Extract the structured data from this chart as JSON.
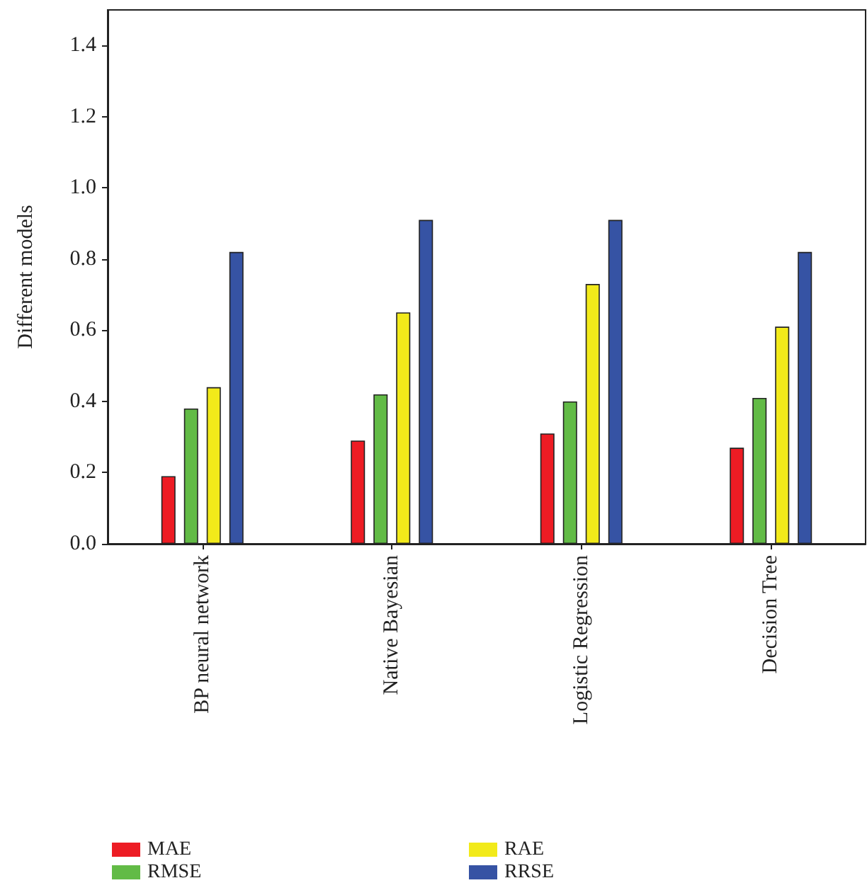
{
  "chart_data": {
    "type": "bar",
    "ylabel": "Different models",
    "categories": [
      "BP neural network",
      "Native Bayesian",
      "Logistic Regression",
      "Decision Tree"
    ],
    "series": [
      {
        "name": "MAE",
        "color": "#ed1c24",
        "values": [
          0.19,
          0.29,
          0.31,
          0.27
        ]
      },
      {
        "name": "RMSE",
        "color": "#62bb46",
        "values": [
          0.38,
          0.42,
          0.4,
          0.41
        ]
      },
      {
        "name": "RAE",
        "color": "#f2ea1a",
        "values": [
          0.44,
          0.65,
          0.73,
          0.61
        ]
      },
      {
        "name": "RRSE",
        "color": "#3653a4",
        "values": [
          0.82,
          0.91,
          0.91,
          0.82
        ]
      }
    ],
    "ylim": [
      0,
      1.5
    ],
    "yticks": [
      {
        "value": 0,
        "label": "0.0"
      },
      0.2,
      0.4,
      0.6,
      0.8,
      {
        "value": 1,
        "label": "1.0"
      },
      1.2,
      1.4
    ],
    "grid": false,
    "legend": "bottom left"
  }
}
